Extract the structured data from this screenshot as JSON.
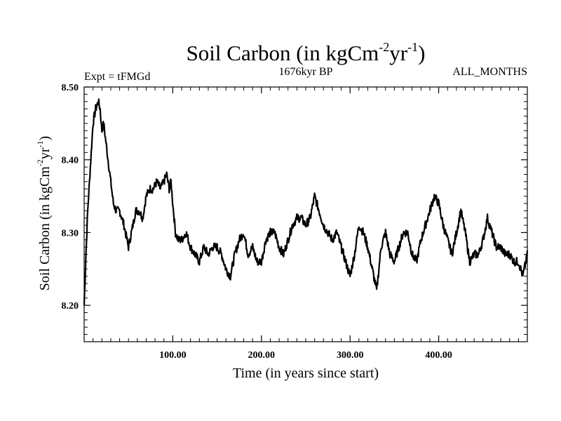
{
  "chart_data": {
    "type": "line",
    "title": {
      "base": "Soil Carbon (in kgCm",
      "sup1": "-2",
      "mid": "yr",
      "sup2": "-1",
      "end": ")"
    },
    "header_left": "Expt = tFMGd",
    "header_center": "1676kyr BP",
    "header_right": "ALL_MONTHS",
    "xlabel": "Time (in years since start)",
    "ylabel": {
      "base": "Soil Carbon (in kgCm",
      "sup1": "-2",
      "mid": "yr",
      "sup2": "-1",
      "end": ")"
    },
    "xlim": [
      0,
      500
    ],
    "ylim": [
      8.15,
      8.5
    ],
    "x_ticks": [
      {
        "value": 100,
        "label": "100.00"
      },
      {
        "value": 200,
        "label": "200.00"
      },
      {
        "value": 300,
        "label": "300.00"
      },
      {
        "value": 400,
        "label": "400.00"
      }
    ],
    "y_ticks": [
      {
        "value": 8.2,
        "label": "8.20"
      },
      {
        "value": 8.3,
        "label": "8.30"
      },
      {
        "value": 8.4,
        "label": "8.40"
      },
      {
        "value": 8.5,
        "label": "8.50"
      }
    ],
    "line_color": "#000000",
    "series": [
      {
        "x": [
          0,
          2,
          4,
          6,
          8,
          10,
          13,
          16,
          18,
          20,
          22,
          24,
          26,
          28,
          30,
          33,
          36,
          40,
          45,
          50,
          55,
          58,
          62,
          66,
          70,
          74,
          78,
          82,
          86,
          90,
          93,
          96,
          98,
          100,
          103,
          106,
          110,
          115,
          120,
          125,
          130,
          135,
          140,
          145,
          150,
          155,
          160,
          165,
          170,
          175,
          180,
          185,
          190,
          195,
          200,
          205,
          210,
          215,
          220,
          225,
          230,
          235,
          240,
          245,
          250,
          255,
          260,
          265,
          270,
          275,
          280,
          285,
          290,
          295,
          300,
          305,
          310,
          315,
          320,
          325,
          330,
          335,
          340,
          345,
          350,
          355,
          360,
          365,
          370,
          375,
          380,
          385,
          390,
          395,
          400,
          405,
          410,
          415,
          420,
          425,
          430,
          435,
          440,
          445,
          450,
          455,
          460,
          465,
          470,
          475,
          480,
          485,
          490,
          495,
          500
        ],
        "values": [
          8.2,
          8.27,
          8.33,
          8.37,
          8.41,
          8.45,
          8.47,
          8.48,
          8.47,
          8.44,
          8.45,
          8.43,
          8.41,
          8.39,
          8.37,
          8.34,
          8.33,
          8.33,
          8.31,
          8.28,
          8.31,
          8.33,
          8.33,
          8.32,
          8.35,
          8.36,
          8.36,
          8.37,
          8.36,
          8.37,
          8.38,
          8.36,
          8.37,
          8.34,
          8.3,
          8.29,
          8.29,
          8.3,
          8.28,
          8.27,
          8.26,
          8.28,
          8.27,
          8.28,
          8.28,
          8.27,
          8.25,
          8.24,
          8.27,
          8.29,
          8.3,
          8.27,
          8.28,
          8.26,
          8.26,
          8.29,
          8.3,
          8.3,
          8.28,
          8.27,
          8.29,
          8.31,
          8.32,
          8.32,
          8.31,
          8.32,
          8.35,
          8.33,
          8.31,
          8.3,
          8.29,
          8.3,
          8.28,
          8.26,
          8.24,
          8.27,
          8.31,
          8.3,
          8.28,
          8.25,
          8.22,
          8.28,
          8.3,
          8.27,
          8.26,
          8.28,
          8.3,
          8.3,
          8.27,
          8.26,
          8.29,
          8.31,
          8.33,
          8.35,
          8.34,
          8.31,
          8.29,
          8.27,
          8.3,
          8.33,
          8.3,
          8.26,
          8.27,
          8.27,
          8.29,
          8.32,
          8.3,
          8.28,
          8.28,
          8.27,
          8.27,
          8.26,
          8.26,
          8.24,
          8.27
        ]
      }
    ]
  }
}
